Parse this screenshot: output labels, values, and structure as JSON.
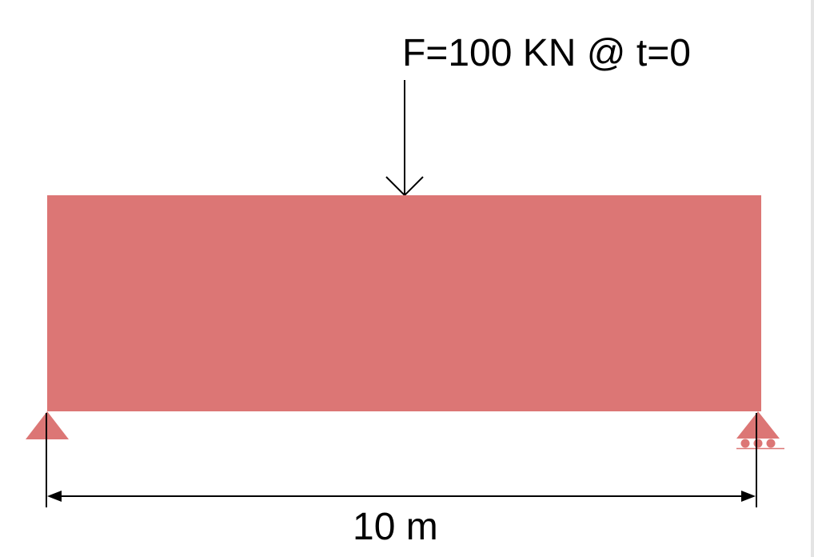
{
  "load_label": "F=100 KN @ t=0",
  "span_label": "10 m",
  "colors": {
    "beam": "#dc7675",
    "support": "#dc7675",
    "line": "#000000"
  },
  "icons": [
    "force-arrow-icon",
    "pin-support-icon",
    "roller-support-icon",
    "dimension-arrow-icon"
  ]
}
